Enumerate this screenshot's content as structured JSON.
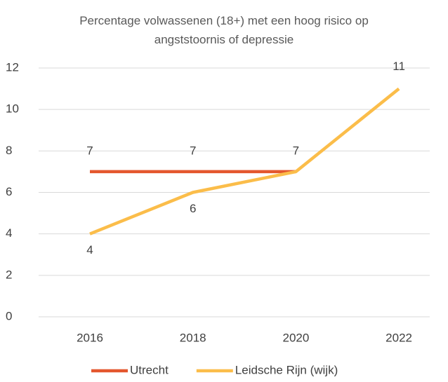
{
  "chart_data": {
    "type": "line",
    "title": "Percentage volwassenen (18+) met een hoog risico op angststoornis of depressie",
    "categories": [
      "2016",
      "2018",
      "2020",
      "2022"
    ],
    "series": [
      {
        "name": "Utrecht",
        "color": "#e4572e",
        "values": [
          7,
          7,
          7,
          null
        ]
      },
      {
        "name": "Leidsche Rijn (wijk)",
        "color": "#fbbd4a",
        "values": [
          4,
          6,
          7,
          11
        ]
      }
    ],
    "ylim": [
      0,
      12
    ],
    "yticks": [
      0,
      2,
      4,
      6,
      8,
      10,
      12
    ],
    "grid": true,
    "legend": "bottom"
  }
}
